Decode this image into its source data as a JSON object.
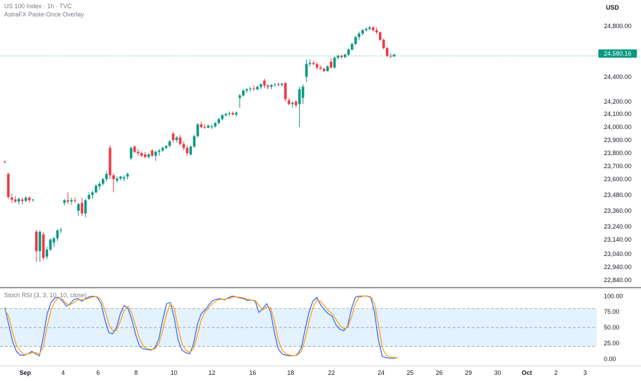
{
  "header": {
    "title": "US 100 Index · 1h · TVC",
    "subtitle": "AstraFX Paste-Once Overlay",
    "currency": "USD"
  },
  "colors": {
    "up": "#089981",
    "down": "#f23645",
    "last_price_line": "#089981",
    "stoch_k": "#2962ff",
    "stoch_d": "#ff9800",
    "band_fill": "#e3f2fd",
    "axis_text": "#131722",
    "subtle_text": "#787b86"
  },
  "chart_data": [
    {
      "type": "candlestick",
      "title": "US 100 Index · 1h · TVC",
      "ylabel": "USD",
      "ylim": [
        22780,
        24900
      ],
      "y_ticks": [
        "24,800.00",
        "24,600.00",
        "24,400.00",
        "24,200.00",
        "24,100.00",
        "24,000.00",
        "23,900.00",
        "23,800.00",
        "23,700.00",
        "23,600.00",
        "23,480.00",
        "23,360.00",
        "23,240.00",
        "23,140.00",
        "23,040.00",
        "22,940.00",
        "22,840.00"
      ],
      "y_tick_values": [
        24800,
        24600,
        24400,
        24200,
        24100,
        24000,
        23900,
        23800,
        23700,
        23600,
        23480,
        23360,
        23240,
        23140,
        23040,
        22940,
        22840
      ],
      "x_ticks": [
        "Sep",
        "4",
        "6",
        "8",
        "10",
        "12",
        "16",
        "18",
        "22",
        "24",
        "25",
        "26",
        "29",
        "30",
        "Oct",
        "2",
        "3"
      ],
      "x_tick_index": [
        7,
        20,
        32,
        45,
        58,
        71,
        85,
        98,
        112,
        129,
        139,
        149,
        159,
        169,
        179,
        189,
        199
      ],
      "last_price": 24580.16,
      "last_price_label": "24,580.16",
      "candles": [
        {
          "o": 23735,
          "h": 23742,
          "l": 23722,
          "c": 23730
        },
        {
          "o": 23640,
          "h": 23650,
          "l": 23450,
          "c": 23465
        },
        {
          "o": 23460,
          "h": 23490,
          "l": 23420,
          "c": 23445
        },
        {
          "o": 23445,
          "h": 23470,
          "l": 23420,
          "c": 23430
        },
        {
          "o": 23430,
          "h": 23460,
          "l": 23410,
          "c": 23450
        },
        {
          "o": 23445,
          "h": 23460,
          "l": 23410,
          "c": 23435
        },
        {
          "o": 23435,
          "h": 23470,
          "l": 23425,
          "c": 23460
        },
        {
          "o": 23460,
          "h": 23470,
          "l": 23420,
          "c": 23440
        },
        {
          "o": 23440,
          "h": 23450,
          "l": 23430,
          "c": 23445
        },
        {
          "o": 23200,
          "h": 23215,
          "l": 22980,
          "c": 23060
        },
        {
          "o": 23060,
          "h": 23210,
          "l": 22980,
          "c": 23200
        },
        {
          "o": 23180,
          "h": 23200,
          "l": 22995,
          "c": 23010
        },
        {
          "o": 23020,
          "h": 23090,
          "l": 23000,
          "c": 23070
        },
        {
          "o": 23070,
          "h": 23150,
          "l": 23060,
          "c": 23140
        },
        {
          "o": 23120,
          "h": 23160,
          "l": 23090,
          "c": 23150
        },
        {
          "o": 23150,
          "h": 23220,
          "l": 23130,
          "c": 23210
        },
        {
          "o": 23210,
          "h": 23230,
          "l": 23190,
          "c": 23215
        },
        {
          "o": 23420,
          "h": 23450,
          "l": 23400,
          "c": 23440
        },
        {
          "o": 23440,
          "h": 23500,
          "l": 23410,
          "c": 23430
        },
        {
          "o": 23430,
          "h": 23460,
          "l": 23405,
          "c": 23440
        },
        {
          "o": 23440,
          "h": 23460,
          "l": 23420,
          "c": 23435
        },
        {
          "o": 23360,
          "h": 23420,
          "l": 23320,
          "c": 23410
        },
        {
          "o": 23420,
          "h": 23460,
          "l": 23320,
          "c": 23340
        },
        {
          "o": 23340,
          "h": 23450,
          "l": 23310,
          "c": 23440
        },
        {
          "o": 23450,
          "h": 23500,
          "l": 23440,
          "c": 23480
        },
        {
          "o": 23480,
          "h": 23510,
          "l": 23450,
          "c": 23500
        },
        {
          "o": 23500,
          "h": 23560,
          "l": 23490,
          "c": 23550
        },
        {
          "o": 23545,
          "h": 23580,
          "l": 23520,
          "c": 23565
        },
        {
          "o": 23565,
          "h": 23610,
          "l": 23550,
          "c": 23600
        },
        {
          "o": 23600,
          "h": 23660,
          "l": 23580,
          "c": 23640
        },
        {
          "o": 23840,
          "h": 23860,
          "l": 23600,
          "c": 23630
        },
        {
          "o": 23630,
          "h": 23640,
          "l": 23500,
          "c": 23600
        },
        {
          "o": 23590,
          "h": 23620,
          "l": 23575,
          "c": 23605
        },
        {
          "o": 23605,
          "h": 23625,
          "l": 23590,
          "c": 23620
        },
        {
          "o": 23605,
          "h": 23630,
          "l": 23585,
          "c": 23615
        },
        {
          "o": 23620,
          "h": 23650,
          "l": 23600,
          "c": 23640
        },
        {
          "o": 23760,
          "h": 23850,
          "l": 23750,
          "c": 23840
        },
        {
          "o": 23850,
          "h": 23860,
          "l": 23800,
          "c": 23810
        },
        {
          "o": 23810,
          "h": 23830,
          "l": 23780,
          "c": 23800
        },
        {
          "o": 23800,
          "h": 23810,
          "l": 23770,
          "c": 23780
        },
        {
          "o": 23790,
          "h": 23810,
          "l": 23760,
          "c": 23770
        },
        {
          "o": 23770,
          "h": 23800,
          "l": 23760,
          "c": 23790
        },
        {
          "o": 23820,
          "h": 23830,
          "l": 23770,
          "c": 23780
        },
        {
          "o": 23780,
          "h": 23820,
          "l": 23740,
          "c": 23810
        },
        {
          "o": 23810,
          "h": 23830,
          "l": 23780,
          "c": 23820
        },
        {
          "o": 23820,
          "h": 23850,
          "l": 23810,
          "c": 23840
        },
        {
          "o": 23840,
          "h": 23860,
          "l": 23830,
          "c": 23855
        },
        {
          "o": 23855,
          "h": 23900,
          "l": 23845,
          "c": 23890
        },
        {
          "o": 23950,
          "h": 23960,
          "l": 23880,
          "c": 23900
        },
        {
          "o": 23900,
          "h": 23930,
          "l": 23880,
          "c": 23920
        },
        {
          "o": 23920,
          "h": 23940,
          "l": 23860,
          "c": 23870
        },
        {
          "o": 23870,
          "h": 23890,
          "l": 23820,
          "c": 23840
        },
        {
          "o": 23840,
          "h": 23860,
          "l": 23780,
          "c": 23800
        },
        {
          "o": 23790,
          "h": 23860,
          "l": 23780,
          "c": 23850
        },
        {
          "o": 23850,
          "h": 23940,
          "l": 23840,
          "c": 23930
        },
        {
          "o": 23930,
          "h": 24030,
          "l": 23920,
          "c": 24020
        },
        {
          "o": 24020,
          "h": 24040,
          "l": 23990,
          "c": 24000
        },
        {
          "o": 24000,
          "h": 24020,
          "l": 23985,
          "c": 23995
        },
        {
          "o": 23995,
          "h": 24020,
          "l": 23990,
          "c": 24010
        },
        {
          "o": 24000,
          "h": 24020,
          "l": 23985,
          "c": 24005
        },
        {
          "o": 24005,
          "h": 24040,
          "l": 23995,
          "c": 24030
        },
        {
          "o": 24030,
          "h": 24070,
          "l": 24020,
          "c": 24060
        },
        {
          "o": 24060,
          "h": 24100,
          "l": 24050,
          "c": 24090
        },
        {
          "o": 24090,
          "h": 24110,
          "l": 24080,
          "c": 24100
        },
        {
          "o": 24100,
          "h": 24120,
          "l": 24085,
          "c": 24105
        },
        {
          "o": 24105,
          "h": 24120,
          "l": 24090,
          "c": 24095
        },
        {
          "o": 24095,
          "h": 24120,
          "l": 24080,
          "c": 24110
        },
        {
          "o": 24230,
          "h": 24260,
          "l": 24150,
          "c": 24250
        },
        {
          "o": 24250,
          "h": 24300,
          "l": 24240,
          "c": 24290
        },
        {
          "o": 24290,
          "h": 24310,
          "l": 24270,
          "c": 24300
        },
        {
          "o": 24300,
          "h": 24320,
          "l": 24280,
          "c": 24305
        },
        {
          "o": 24305,
          "h": 24330,
          "l": 24290,
          "c": 24300
        },
        {
          "o": 24300,
          "h": 24330,
          "l": 24290,
          "c": 24320
        },
        {
          "o": 24320,
          "h": 24350,
          "l": 24300,
          "c": 24340
        },
        {
          "o": 24370,
          "h": 24385,
          "l": 24310,
          "c": 24330
        },
        {
          "o": 24330,
          "h": 24340,
          "l": 24300,
          "c": 24320
        },
        {
          "o": 24320,
          "h": 24340,
          "l": 24300,
          "c": 24335
        },
        {
          "o": 24335,
          "h": 24350,
          "l": 24320,
          "c": 24340
        },
        {
          "o": 24340,
          "h": 24355,
          "l": 24325,
          "c": 24335
        },
        {
          "o": 24335,
          "h": 24350,
          "l": 24320,
          "c": 24345
        },
        {
          "o": 24350,
          "h": 24360,
          "l": 24200,
          "c": 24220
        },
        {
          "o": 24210,
          "h": 24230,
          "l": 24170,
          "c": 24180
        },
        {
          "o": 24180,
          "h": 24200,
          "l": 24150,
          "c": 24190
        },
        {
          "o": 24200,
          "h": 24210,
          "l": 24150,
          "c": 24170
        },
        {
          "o": 24180,
          "h": 24320,
          "l": 24000,
          "c": 24300
        },
        {
          "o": 24230,
          "h": 24340,
          "l": 24180,
          "c": 24320
        },
        {
          "o": 24400,
          "h": 24550,
          "l": 24360,
          "c": 24510
        },
        {
          "o": 24510,
          "h": 24550,
          "l": 24490,
          "c": 24520
        },
        {
          "o": 24520,
          "h": 24540,
          "l": 24500,
          "c": 24510
        },
        {
          "o": 24510,
          "h": 24525,
          "l": 24460,
          "c": 24480
        },
        {
          "o": 24480,
          "h": 24500,
          "l": 24460,
          "c": 24470
        },
        {
          "o": 24470,
          "h": 24480,
          "l": 24440,
          "c": 24450
        },
        {
          "o": 24450,
          "h": 24500,
          "l": 24445,
          "c": 24490
        },
        {
          "o": 24530,
          "h": 24560,
          "l": 24470,
          "c": 24480
        },
        {
          "o": 24480,
          "h": 24575,
          "l": 24470,
          "c": 24565
        },
        {
          "o": 24565,
          "h": 24590,
          "l": 24550,
          "c": 24580
        },
        {
          "o": 24580,
          "h": 24590,
          "l": 24555,
          "c": 24570
        },
        {
          "o": 24570,
          "h": 24600,
          "l": 24560,
          "c": 24590
        },
        {
          "o": 24590,
          "h": 24640,
          "l": 24580,
          "c": 24630
        },
        {
          "o": 24630,
          "h": 24680,
          "l": 24620,
          "c": 24670
        },
        {
          "o": 24670,
          "h": 24730,
          "l": 24660,
          "c": 24720
        },
        {
          "o": 24720,
          "h": 24760,
          "l": 24700,
          "c": 24745
        },
        {
          "o": 24745,
          "h": 24780,
          "l": 24730,
          "c": 24770
        },
        {
          "o": 24770,
          "h": 24790,
          "l": 24760,
          "c": 24780
        },
        {
          "o": 24780,
          "h": 24800,
          "l": 24770,
          "c": 24790
        },
        {
          "o": 24790,
          "h": 24800,
          "l": 24760,
          "c": 24770
        },
        {
          "o": 24770,
          "h": 24790,
          "l": 24740,
          "c": 24755
        },
        {
          "o": 24755,
          "h": 24760,
          "l": 24690,
          "c": 24700
        },
        {
          "o": 24700,
          "h": 24710,
          "l": 24630,
          "c": 24640
        },
        {
          "o": 24640,
          "h": 24650,
          "l": 24570,
          "c": 24580
        },
        {
          "o": 24580,
          "h": 24600,
          "l": 24560,
          "c": 24575
        },
        {
          "o": 24575,
          "h": 24600,
          "l": 24570,
          "c": 24590
        }
      ]
    },
    {
      "type": "line",
      "title": "Stoch RSI (3, 3, 10, 10, close)",
      "ylim": [
        -10,
        108
      ],
      "y_ticks": [
        "100.00",
        "75.00",
        "50.00",
        "25.00",
        "0.00"
      ],
      "y_tick_values": [
        100,
        75,
        50,
        25,
        0
      ],
      "bands": [
        80,
        50,
        20
      ],
      "series": [
        {
          "key": "k",
          "values": [
            82,
            55,
            28,
            12,
            6,
            6,
            8,
            12,
            8,
            5,
            35,
            72,
            90,
            97,
            98,
            92,
            84,
            88,
            95,
            96,
            92,
            96,
            99,
            100,
            98,
            88,
            62,
            42,
            40,
            50,
            72,
            85,
            80,
            62,
            38,
            20,
            16,
            15,
            14,
            18,
            32,
            62,
            88,
            90,
            65,
            30,
            14,
            10,
            8,
            24,
            55,
            72,
            78,
            86,
            93,
            95,
            96,
            94,
            97,
            100,
            99,
            97,
            96,
            93,
            94,
            92,
            74,
            80,
            88,
            75,
            42,
            16,
            8,
            6,
            5,
            5,
            7,
            18,
            48,
            75,
            92,
            98,
            86,
            78,
            72,
            68,
            54,
            47,
            45,
            52,
            80,
            98,
            100,
            100,
            100,
            98,
            74,
            30,
            4,
            2,
            1,
            1,
            2
          ]
        },
        {
          "key": "d",
          "values": [
            78,
            68,
            42,
            22,
            12,
            7,
            8,
            10,
            10,
            8,
            20,
            52,
            78,
            92,
            97,
            95,
            88,
            86,
            90,
            94,
            94,
            95,
            97,
            99,
            99,
            94,
            78,
            55,
            45,
            45,
            60,
            78,
            84,
            72,
            52,
            32,
            20,
            16,
            15,
            16,
            24,
            46,
            72,
            88,
            80,
            50,
            24,
            14,
            10,
            16,
            38,
            62,
            75,
            82,
            88,
            93,
            95,
            95,
            96,
            98,
            99,
            98,
            97,
            95,
            94,
            93,
            85,
            78,
            83,
            82,
            60,
            30,
            14,
            8,
            6,
            5,
            6,
            12,
            32,
            60,
            82,
            94,
            92,
            84,
            77,
            72,
            63,
            53,
            48,
            50,
            66,
            88,
            98,
            100,
            100,
            99,
            88,
            55,
            18,
            6,
            3,
            2,
            2
          ]
        }
      ]
    }
  ]
}
